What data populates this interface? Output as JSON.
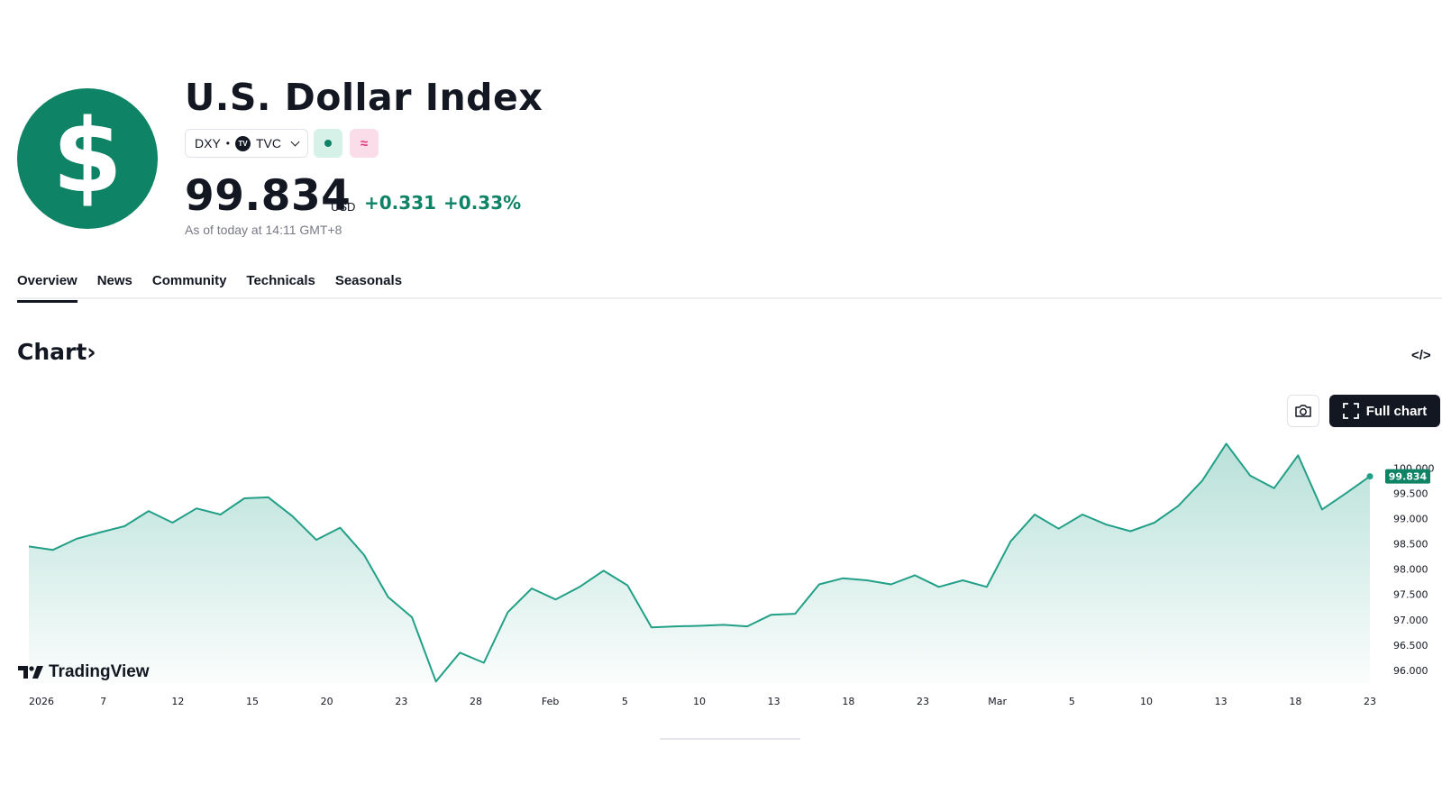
{
  "header": {
    "logo_symbol": "$",
    "title": "U.S. Dollar Index",
    "symbol": "DXY",
    "exchange_logo": "TV",
    "exchange": "TVC",
    "status_icon": "market-status-dot-icon",
    "indicator_icon": "≈",
    "price": "99.834",
    "currency": "USD",
    "change": "+0.331",
    "change_percent": "+0.33%",
    "as_of": "As of today at 14:11 GMT+8",
    "accent_color": "#0e8366",
    "negative_badge_color": "#e0367c"
  },
  "tabs": [
    {
      "label": "Overview",
      "active": true
    },
    {
      "label": "News",
      "active": false
    },
    {
      "label": "Community",
      "active": false
    },
    {
      "label": "Technicals",
      "active": false
    },
    {
      "label": "Seasonals",
      "active": false
    }
  ],
  "chart_section": {
    "heading": "Chart",
    "heading_arrow": "›",
    "embed_icon": "</>",
    "full_chart_label": "Full chart",
    "watermark": "TradingView"
  },
  "chart_data": {
    "type": "area",
    "color": "#22a087",
    "current_value": 99.834,
    "current_label": "99.834",
    "ylim": [
      95.75,
      100.7
    ],
    "y_ticks": [
      "100.000",
      "99.500",
      "99.000",
      "98.500",
      "98.000",
      "97.500",
      "97.000",
      "96.500",
      "96.000"
    ],
    "y_tick_values": [
      100.0,
      99.5,
      99.0,
      98.5,
      98.0,
      97.5,
      97.0,
      96.5,
      96.0
    ],
    "x_ticks": [
      "2026",
      "7",
      "12",
      "15",
      "20",
      "23",
      "28",
      "Feb",
      "5",
      "10",
      "13",
      "18",
      "23",
      "Mar",
      "5",
      "10",
      "13",
      "18",
      "23"
    ],
    "values": [
      98.45,
      98.38,
      98.6,
      98.73,
      98.85,
      99.15,
      98.92,
      99.2,
      99.08,
      99.4,
      99.42,
      99.05,
      98.58,
      98.82,
      98.28,
      97.45,
      97.05,
      95.78,
      96.35,
      96.15,
      97.15,
      97.62,
      97.4,
      97.65,
      97.97,
      97.68,
      96.85,
      96.87,
      96.88,
      96.9,
      96.87,
      97.1,
      97.12,
      97.7,
      97.82,
      97.78,
      97.7,
      97.88,
      97.65,
      97.78,
      97.65,
      98.55,
      99.08,
      98.8,
      99.08,
      98.88,
      98.75,
      98.92,
      99.25,
      99.75,
      100.48,
      99.85,
      99.6,
      100.25,
      99.18,
      99.5,
      99.834
    ]
  }
}
